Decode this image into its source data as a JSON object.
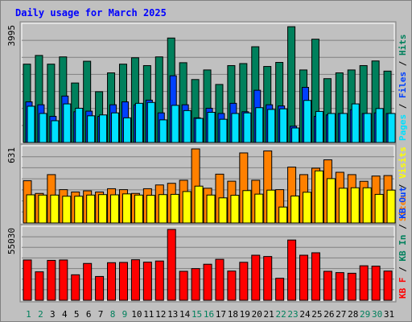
{
  "title": "Daily usage for March 2025",
  "colors": {
    "background": "#c0c0c0",
    "panel": "#c0c0c0",
    "hits": "#00805c",
    "files": "#0040ff",
    "pages": "#00e0ff",
    "visits": "#ffff00",
    "sites": "#ff8000",
    "kbin": "#00805c",
    "kbout": "#0040ff",
    "kbf": "#ff0000",
    "weekday_label": "#000000",
    "weekend_label": "#00805c",
    "title": "#0000ff"
  },
  "chart_data": [
    {
      "type": "bar",
      "panel": "hits-files-pages",
      "ymax_label": "3995",
      "ylim": [
        0,
        3995
      ],
      "categories": [
        "1",
        "2",
        "3",
        "4",
        "5",
        "6",
        "7",
        "8",
        "9",
        "10",
        "11",
        "12",
        "13",
        "14",
        "15",
        "16",
        "17",
        "18",
        "19",
        "20",
        "21",
        "22",
        "23",
        "24",
        "25",
        "26",
        "27",
        "28",
        "29",
        "30",
        "31"
      ],
      "legend": [
        "Pages",
        "/",
        "Files",
        "/",
        "Hits"
      ],
      "series": [
        {
          "name": "Hits",
          "color": "#00805c",
          "values": [
            2700,
            3000,
            2700,
            2950,
            2050,
            2800,
            1750,
            2400,
            2700,
            2920,
            2650,
            2950,
            3600,
            2750,
            2170,
            2500,
            2000,
            2650,
            2720,
            3300,
            2620,
            2760,
            3990,
            2500,
            3560,
            2200,
            2400,
            2500,
            2650,
            2810,
            2460
          ]
        },
        {
          "name": "Files",
          "color": "#0040ff",
          "values": [
            1400,
            1300,
            900,
            1600,
            1060,
            1080,
            900,
            1300,
            1400,
            1300,
            1460,
            1020,
            2300,
            1300,
            850,
            1180,
            1000,
            1350,
            1060,
            1800,
            1300,
            1260,
            560,
            1900,
            900,
            950,
            1000,
            1130,
            1000,
            1020,
            1000
          ]
        },
        {
          "name": "Pages",
          "color": "#00e0ff",
          "values": [
            1250,
            1000,
            750,
            1330,
            1180,
            920,
            950,
            1020,
            850,
            1350,
            1380,
            780,
            1280,
            1100,
            830,
            1040,
            800,
            1000,
            1020,
            1200,
            1140,
            1160,
            500,
            1450,
            1070,
            1000,
            1000,
            1330,
            1000,
            1170,
            1000
          ]
        }
      ]
    },
    {
      "type": "bar",
      "panel": "visits-sites",
      "ymax_label": "631",
      "ylim": [
        0,
        631
      ],
      "categories": [
        "1",
        "2",
        "3",
        "4",
        "5",
        "6",
        "7",
        "8",
        "9",
        "10",
        "11",
        "12",
        "13",
        "14",
        "15",
        "16",
        "17",
        "18",
        "19",
        "20",
        "21",
        "22",
        "23",
        "24",
        "25",
        "26",
        "27",
        "28",
        "29",
        "30",
        "31"
      ],
      "legend": [
        "Sites",
        "/",
        "Visits"
      ],
      "series": [
        {
          "name": "Sites",
          "color": "#ff8000",
          "values": [
            360,
            252,
            412,
            284,
            264,
            274,
            264,
            292,
            284,
            252,
            292,
            324,
            338,
            364,
            631,
            296,
            416,
            356,
            597,
            364,
            614,
            284,
            476,
            412,
            467,
            538,
            432,
            412,
            355,
            400,
            404
          ]
        },
        {
          "name": "Visits",
          "color": "#ffff00",
          "values": [
            240,
            238,
            238,
            228,
            228,
            238,
            242,
            240,
            248,
            238,
            236,
            242,
            244,
            268,
            314,
            238,
            214,
            236,
            276,
            246,
            280,
            136,
            230,
            262,
            444,
            378,
            296,
            300,
            300,
            244,
            280
          ]
        }
      ]
    },
    {
      "type": "bar",
      "panel": "kbytes",
      "ymax_label": "55030",
      "ylim": [
        0,
        55030
      ],
      "categories": [
        "1",
        "2",
        "3",
        "4",
        "5",
        "6",
        "7",
        "8",
        "9",
        "10",
        "11",
        "12",
        "13",
        "14",
        "15",
        "16",
        "17",
        "18",
        "19",
        "20",
        "21",
        "22",
        "23",
        "24",
        "25",
        "26",
        "27",
        "28",
        "29",
        "30",
        "31"
      ],
      "legend": [
        "KB F",
        "/",
        "KB In",
        "/",
        "KB Out"
      ],
      "series": [
        {
          "name": "KB F",
          "color": "#ff0000",
          "values": [
            31300,
            22100,
            31000,
            31300,
            19800,
            28600,
            18500,
            29200,
            29400,
            31500,
            29600,
            30500,
            55030,
            22500,
            24600,
            28000,
            31800,
            22700,
            29500,
            35000,
            34000,
            17100,
            46800,
            35000,
            36900,
            22500,
            21500,
            21000,
            26800,
            26500,
            22700
          ]
        }
      ]
    }
  ],
  "x_labels": [
    {
      "text": "1",
      "weekend": true
    },
    {
      "text": "2",
      "weekend": true
    },
    {
      "text": "3",
      "weekend": false
    },
    {
      "text": "4",
      "weekend": false
    },
    {
      "text": "5",
      "weekend": false
    },
    {
      "text": "6",
      "weekend": false
    },
    {
      "text": "7",
      "weekend": false
    },
    {
      "text": "8",
      "weekend": true
    },
    {
      "text": "9",
      "weekend": true
    },
    {
      "text": "10",
      "weekend": false
    },
    {
      "text": "11",
      "weekend": false
    },
    {
      "text": "12",
      "weekend": false
    },
    {
      "text": "13",
      "weekend": false
    },
    {
      "text": "14",
      "weekend": false
    },
    {
      "text": "15",
      "weekend": true
    },
    {
      "text": "16",
      "weekend": true
    },
    {
      "text": "17",
      "weekend": false
    },
    {
      "text": "18",
      "weekend": false
    },
    {
      "text": "19",
      "weekend": false
    },
    {
      "text": "20",
      "weekend": false
    },
    {
      "text": "21",
      "weekend": false
    },
    {
      "text": "22",
      "weekend": true
    },
    {
      "text": "23",
      "weekend": true
    },
    {
      "text": "24",
      "weekend": false
    },
    {
      "text": "25",
      "weekend": false
    },
    {
      "text": "26",
      "weekend": false
    },
    {
      "text": "27",
      "weekend": false
    },
    {
      "text": "28",
      "weekend": false
    },
    {
      "text": "29",
      "weekend": true
    },
    {
      "text": "30",
      "weekend": true
    },
    {
      "text": "31",
      "weekend": false
    }
  ]
}
